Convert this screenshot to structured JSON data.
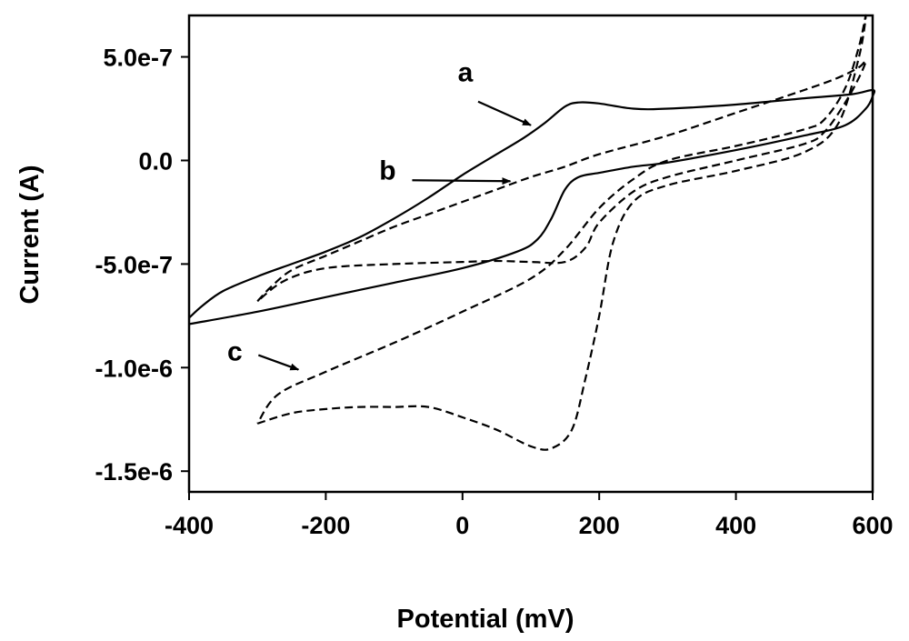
{
  "chart_data": {
    "type": "line",
    "title": "",
    "xlabel": "Potential (mV)",
    "ylabel": "Current (A)",
    "xlim": [
      -400,
      600
    ],
    "ylim": [
      -1.6e-06,
      7e-07
    ],
    "x_ticks": [
      {
        "value": -400,
        "label": "-400"
      },
      {
        "value": -200,
        "label": "-200"
      },
      {
        "value": 0,
        "label": "0"
      },
      {
        "value": 200,
        "label": "200"
      },
      {
        "value": 400,
        "label": "400"
      },
      {
        "value": 600,
        "label": "600"
      }
    ],
    "y_ticks": [
      {
        "value": 5e-07,
        "label": "5.0e-7"
      },
      {
        "value": 0,
        "label": "0.0"
      },
      {
        "value": -5e-07,
        "label": "-5.0e-7"
      },
      {
        "value": -1e-06,
        "label": "-1.0e-6"
      },
      {
        "value": -1.5e-06,
        "label": "-1.5e-6"
      }
    ],
    "grid": false,
    "series": [
      {
        "name": "a",
        "style": "solid",
        "points": [
          [
            -400,
            -7.6e-07
          ],
          [
            -380,
            -7e-07
          ],
          [
            -350,
            -6.3e-07
          ],
          [
            -300,
            -5.6e-07
          ],
          [
            -250,
            -5e-07
          ],
          [
            -200,
            -4.4e-07
          ],
          [
            -150,
            -3.7e-07
          ],
          [
            -100,
            -2.8e-07
          ],
          [
            -50,
            -1.8e-07
          ],
          [
            0,
            -7e-08
          ],
          [
            50,
            3e-08
          ],
          [
            90,
            1.1e-07
          ],
          [
            120,
            1.8e-07
          ],
          [
            150,
            2.6e-07
          ],
          [
            170,
            2.8e-07
          ],
          [
            200,
            2.75e-07
          ],
          [
            250,
            2.5e-07
          ],
          [
            300,
            2.5e-07
          ],
          [
            400,
            2.7e-07
          ],
          [
            500,
            3e-07
          ],
          [
            570,
            3.2e-07
          ],
          [
            600,
            3.4e-07
          ],
          [
            600,
            3.1e-07
          ],
          [
            590,
            2.5e-07
          ],
          [
            560,
            1.7e-07
          ],
          [
            500,
            1.2e-07
          ],
          [
            400,
            5e-08
          ],
          [
            300,
            -1e-08
          ],
          [
            250,
            -3e-08
          ],
          [
            200,
            -6e-08
          ],
          [
            170,
            -8e-08
          ],
          [
            150,
            -1.4e-07
          ],
          [
            130,
            -2.8e-07
          ],
          [
            110,
            -3.8e-07
          ],
          [
            80,
            -4.4e-07
          ],
          [
            0,
            -5.2e-07
          ],
          [
            -100,
            -5.9e-07
          ],
          [
            -200,
            -6.6e-07
          ],
          [
            -300,
            -7.3e-07
          ],
          [
            -400,
            -7.9e-07
          ]
        ]
      },
      {
        "name": "b",
        "style": "dashed",
        "points": [
          [
            -300,
            -6.8e-07
          ],
          [
            -280,
            -6.1e-07
          ],
          [
            -250,
            -5.3e-07
          ],
          [
            -200,
            -4.6e-07
          ],
          [
            -150,
            -3.9e-07
          ],
          [
            -100,
            -3.2e-07
          ],
          [
            -50,
            -2.6e-07
          ],
          [
            0,
            -2e-07
          ],
          [
            50,
            -1.4e-07
          ],
          [
            100,
            -8e-08
          ],
          [
            150,
            -3e-08
          ],
          [
            200,
            3e-08
          ],
          [
            300,
            1.2e-07
          ],
          [
            400,
            2.3e-07
          ],
          [
            500,
            3.4e-07
          ],
          [
            550,
            4e-07
          ],
          [
            580,
            4.5e-07
          ],
          [
            590,
            4.8e-07
          ],
          [
            580,
            4e-07
          ],
          [
            560,
            2.8e-07
          ],
          [
            530,
            1.4e-07
          ],
          [
            500,
            8e-08
          ],
          [
            400,
            0.0
          ],
          [
            300,
            -8e-08
          ],
          [
            250,
            -1.5e-07
          ],
          [
            200,
            -3e-07
          ],
          [
            180,
            -4.2e-07
          ],
          [
            150,
            -4.9e-07
          ],
          [
            100,
            -4.9e-07
          ],
          [
            50,
            -4.85e-07
          ],
          [
            0,
            -4.9e-07
          ],
          [
            -100,
            -5e-07
          ],
          [
            -200,
            -5.2e-07
          ],
          [
            -260,
            -5.8e-07
          ],
          [
            -300,
            -6.8e-07
          ]
        ]
      },
      {
        "name": "c",
        "style": "dashed",
        "points": [
          [
            -300,
            -1.27e-06
          ],
          [
            -250,
            -1.22e-06
          ],
          [
            -200,
            -1.2e-06
          ],
          [
            -150,
            -1.19e-06
          ],
          [
            -100,
            -1.19e-06
          ],
          [
            -50,
            -1.19e-06
          ],
          [
            0,
            -1.24e-06
          ],
          [
            50,
            -1.3e-06
          ],
          [
            100,
            -1.38e-06
          ],
          [
            130,
            -1.39e-06
          ],
          [
            160,
            -1.3e-06
          ],
          [
            180,
            -1.05e-06
          ],
          [
            200,
            -7.5e-07
          ],
          [
            220,
            -4e-07
          ],
          [
            250,
            -2e-07
          ],
          [
            300,
            -1.2e-07
          ],
          [
            400,
            -5e-08
          ],
          [
            500,
            4e-08
          ],
          [
            550,
            1.8e-07
          ],
          [
            580,
            5e-07
          ],
          [
            590,
            7e-07
          ],
          [
            580,
            5.5e-07
          ],
          [
            560,
            3.5e-07
          ],
          [
            530,
            2e-07
          ],
          [
            500,
            1.5e-07
          ],
          [
            400,
            7e-08
          ],
          [
            300,
            0.0
          ],
          [
            250,
            -9e-08
          ],
          [
            200,
            -2.3e-07
          ],
          [
            150,
            -4.3e-07
          ],
          [
            100,
            -5.7e-07
          ],
          [
            0,
            -7.3e-07
          ],
          [
            -100,
            -8.8e-07
          ],
          [
            -200,
            -1.02e-06
          ],
          [
            -270,
            -1.13e-06
          ],
          [
            -300,
            -1.27e-06
          ]
        ]
      }
    ],
    "annotations": [
      {
        "text": "a",
        "target": [
          100,
          1.7e-07
        ]
      },
      {
        "text": "b",
        "target": [
          70,
          -1e-07
        ]
      },
      {
        "text": "c",
        "target": [
          -240,
          -1.01e-06
        ]
      }
    ]
  }
}
